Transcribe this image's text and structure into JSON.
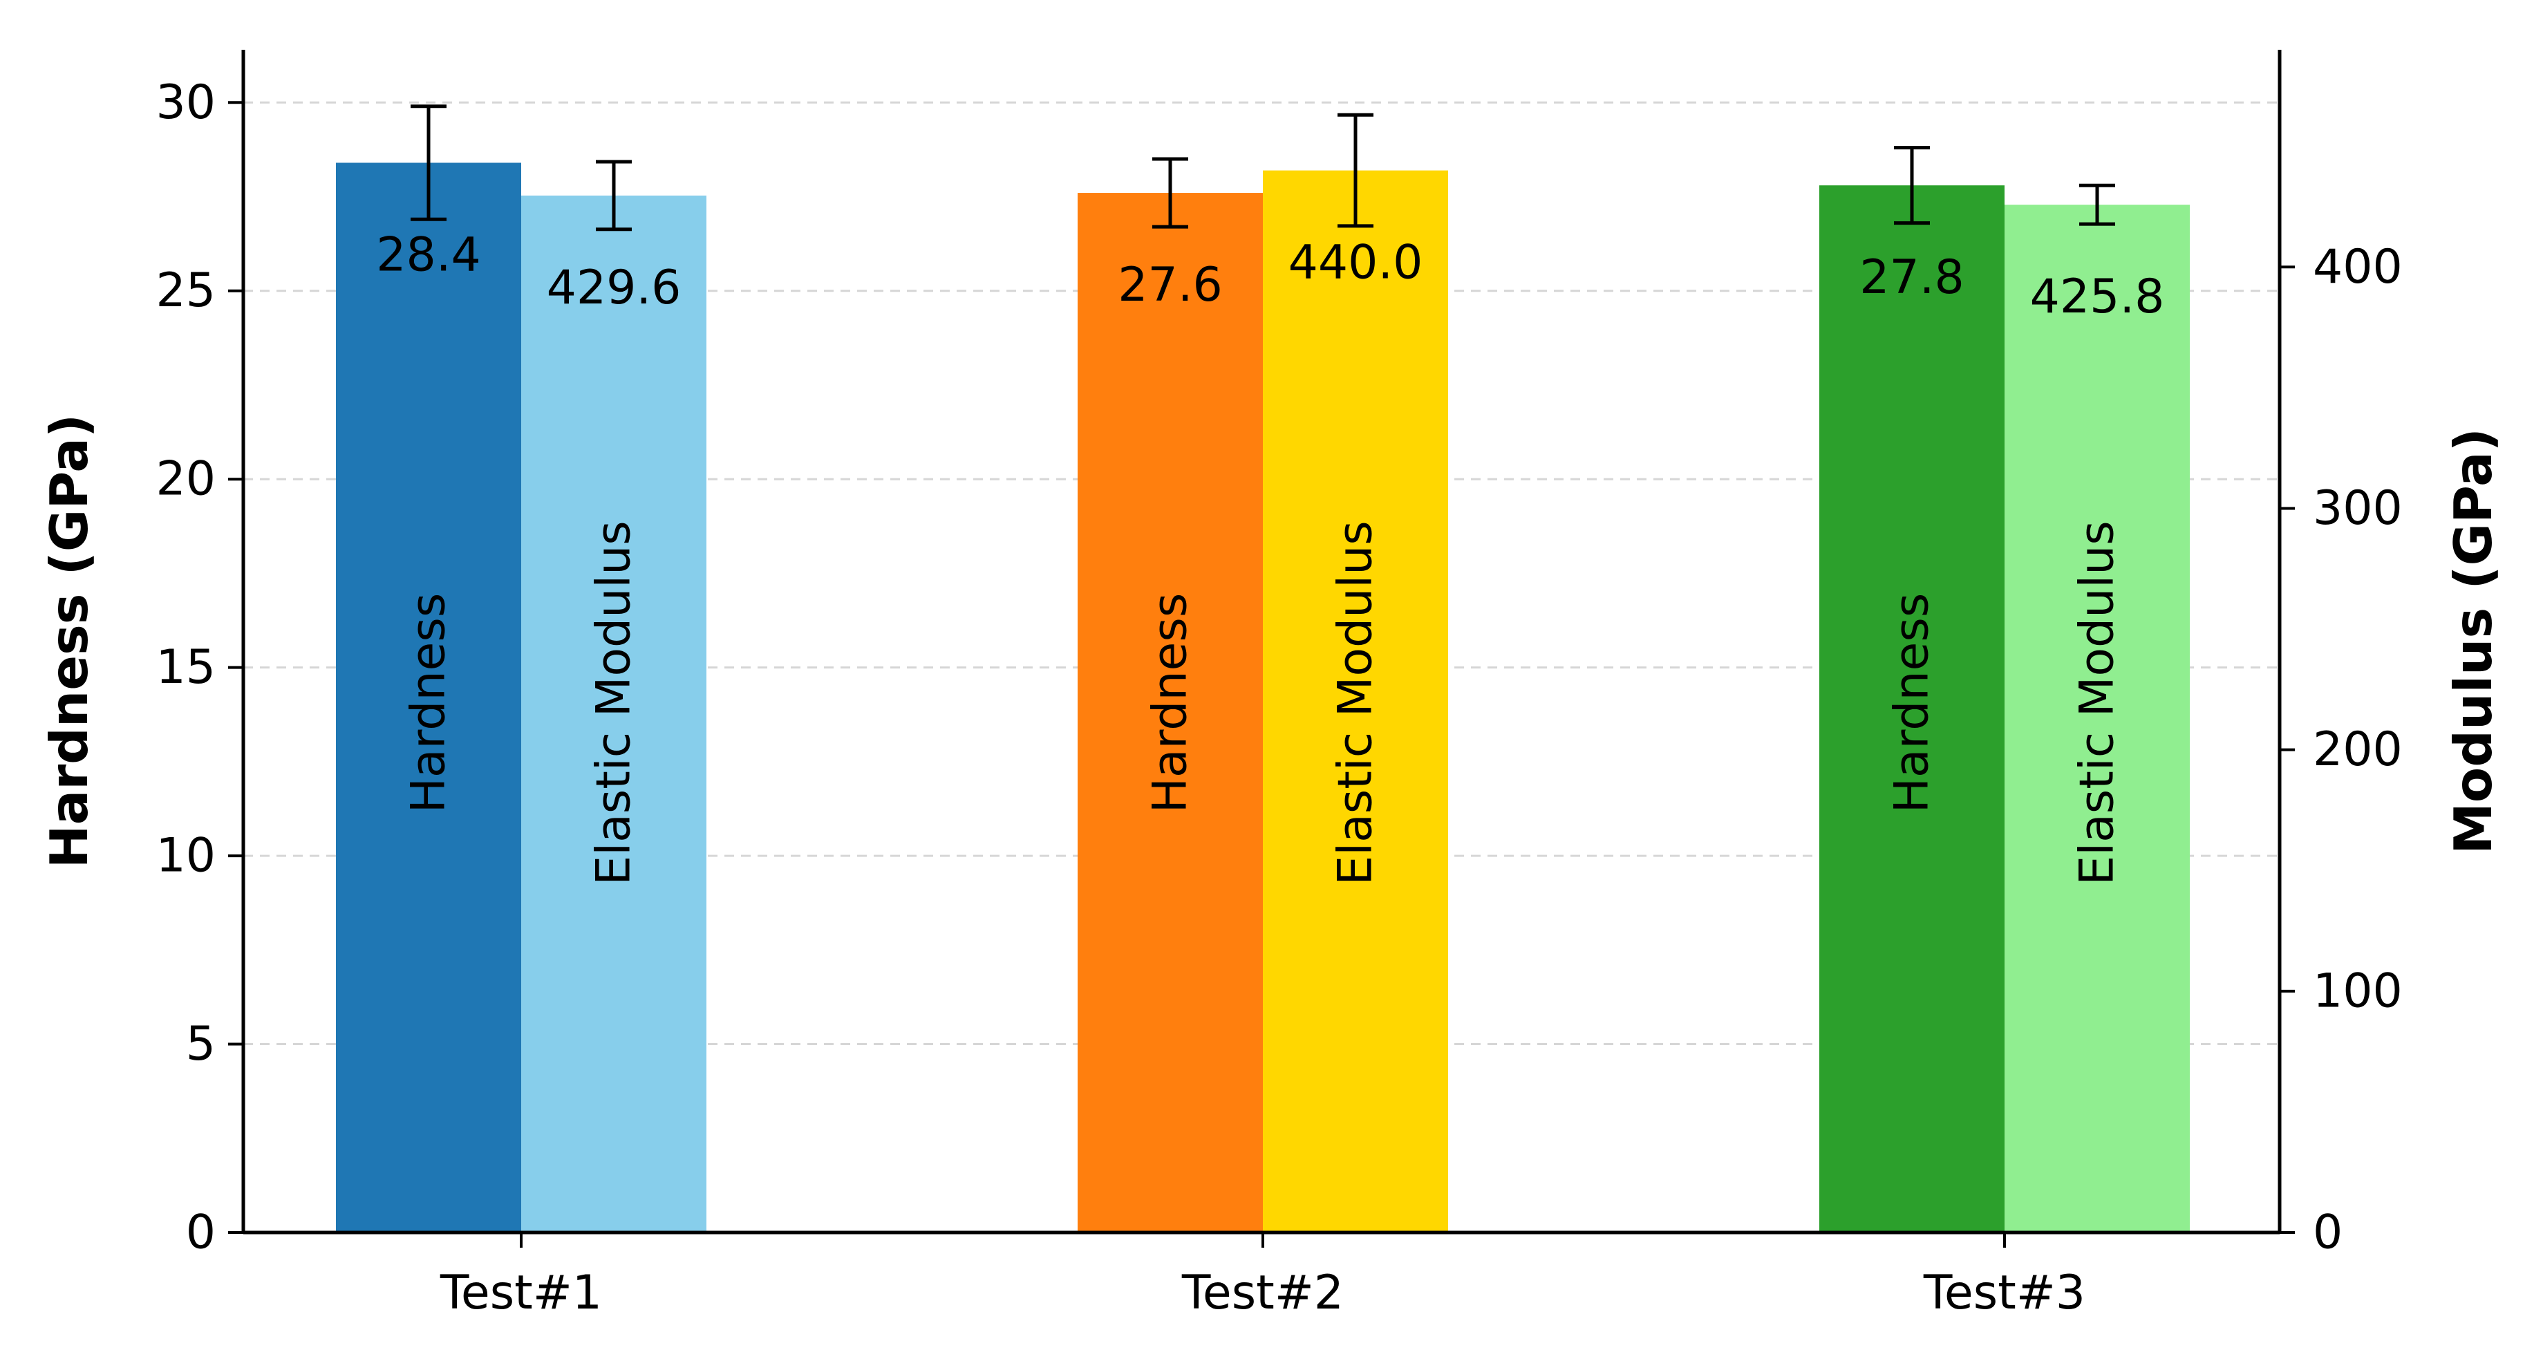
{
  "chart_data": {
    "type": "bar",
    "categories": [
      "Test#1",
      "Test#2",
      "Test#3"
    ],
    "left_axis": {
      "ylabel": "Hardness (GPa)",
      "ylim": [
        0,
        31.4
      ],
      "ticks": [
        0,
        5,
        10,
        15,
        20,
        25,
        30
      ]
    },
    "right_axis": {
      "ylabel": "Modulus (GPa)",
      "ylim": [
        0,
        490
      ],
      "ticks": [
        0,
        100,
        200,
        300,
        400
      ]
    },
    "grid": "horizontal dashed at left-axis ticks",
    "series": [
      {
        "name": "Hardness",
        "axis": "left",
        "values": [
          28.4,
          27.6,
          27.8
        ],
        "errors": [
          1.5,
          0.9,
          1.0
        ],
        "value_labels": [
          "28.4",
          "27.6",
          "27.8"
        ],
        "colors": [
          "#1f77b4",
          "#ff7f0e",
          "#2ca02c"
        ]
      },
      {
        "name": "Elastic Modulus",
        "axis": "right",
        "values": [
          429.6,
          440.0,
          425.8
        ],
        "errors": [
          14,
          23,
          8
        ],
        "value_labels": [
          "429.6",
          "440.0",
          "425.8"
        ],
        "colors": [
          "#87ceeb",
          "#ffd700",
          "#90ee90"
        ]
      }
    ]
  }
}
